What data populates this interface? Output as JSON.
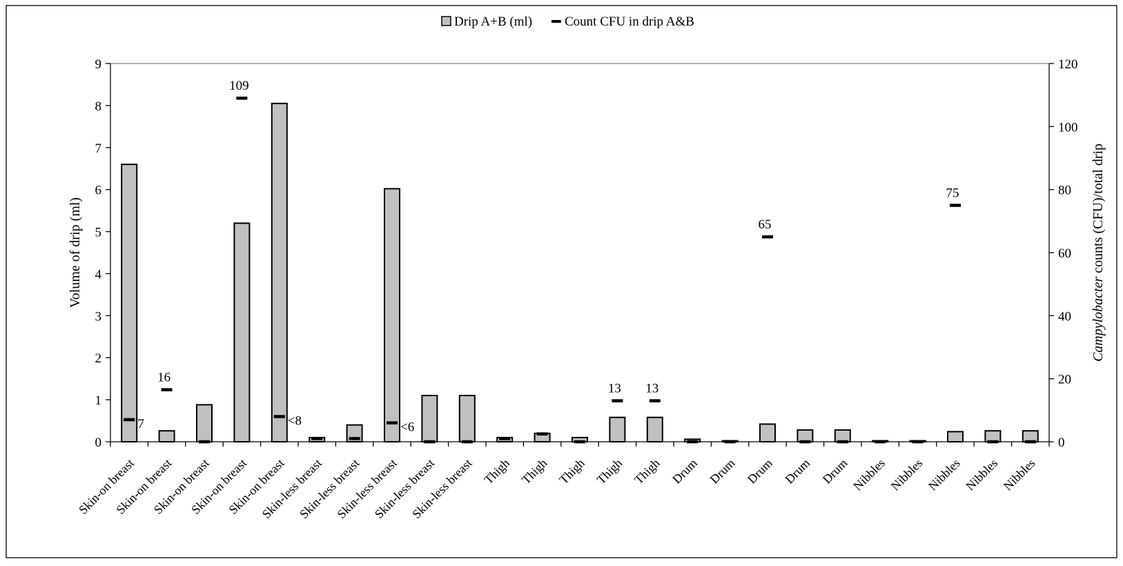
{
  "chart_data": {
    "type": "bar",
    "legend": {
      "placement": "top-center",
      "bar_label": "Drip A+B (ml)",
      "marker_label": "Count CFU in drip A&B"
    },
    "ylabel": "Volume of drip (ml)",
    "y2label_italic": "Campylobacter",
    "y2label_rest": " counts (CFU)/total drip",
    "ylim": [
      0,
      9
    ],
    "y_ticks": [
      "0",
      "1",
      "2",
      "3",
      "4",
      "5",
      "6",
      "7",
      "8",
      "9"
    ],
    "y2lim": [
      0,
      120
    ],
    "y2_ticks": [
      "0",
      "20",
      "40",
      "60",
      "80",
      "100",
      "120"
    ],
    "categories": [
      "Skin-on breast",
      "Skin-on breast",
      "Skin-on breast",
      "Skin-on breast",
      "Skin-on breast",
      "Skin-less breast",
      "Skin-less breast",
      "Skin-less breast",
      "Skin-less breast",
      "Skin-less breast",
      "Thigh",
      "Thigh",
      "Thigh",
      "Thigh",
      "Thigh",
      "Drum",
      "Drum",
      "Drum",
      "Drum",
      "Drum",
      "Nibbles",
      "Nibbles",
      "Nibbles",
      "Nibbles",
      "Nibbles"
    ],
    "series": [
      {
        "name": "Drip A+B (ml)",
        "type": "bar",
        "axis": "left",
        "values": [
          6.6,
          0.26,
          0.88,
          5.2,
          8.05,
          0.1,
          0.4,
          6.02,
          1.1,
          1.1,
          0.1,
          0.2,
          0.1,
          0.58,
          0.58,
          0.06,
          0.0,
          0.42,
          0.28,
          0.28,
          0.0,
          0.0,
          0.24,
          0.26,
          0.26
        ]
      },
      {
        "name": "Count CFU in drip A&B",
        "type": "marker",
        "axis": "right",
        "values": [
          7,
          16.5,
          0,
          109,
          8,
          1,
          1,
          6,
          0,
          0,
          1,
          2.5,
          0,
          13,
          13,
          0,
          0,
          65,
          0,
          0,
          0,
          0,
          75,
          0,
          0
        ]
      }
    ],
    "data_labels": [
      {
        "index": 0,
        "text": "7",
        "pos": "right"
      },
      {
        "index": 1,
        "text": "16",
        "pos": "above"
      },
      {
        "index": 3,
        "text": "109",
        "pos": "above"
      },
      {
        "index": 4,
        "text": "<8",
        "pos": "right"
      },
      {
        "index": 7,
        "text": "<6",
        "pos": "right"
      },
      {
        "index": 13,
        "text": "13",
        "pos": "above"
      },
      {
        "index": 14,
        "text": "13",
        "pos": "above"
      },
      {
        "index": 17,
        "text": "65",
        "pos": "above"
      },
      {
        "index": 22,
        "text": "75",
        "pos": "above"
      }
    ],
    "colors": {
      "bar_fill": "#c0c0c0",
      "bar_stroke": "#000000",
      "marker": "#000000"
    }
  }
}
